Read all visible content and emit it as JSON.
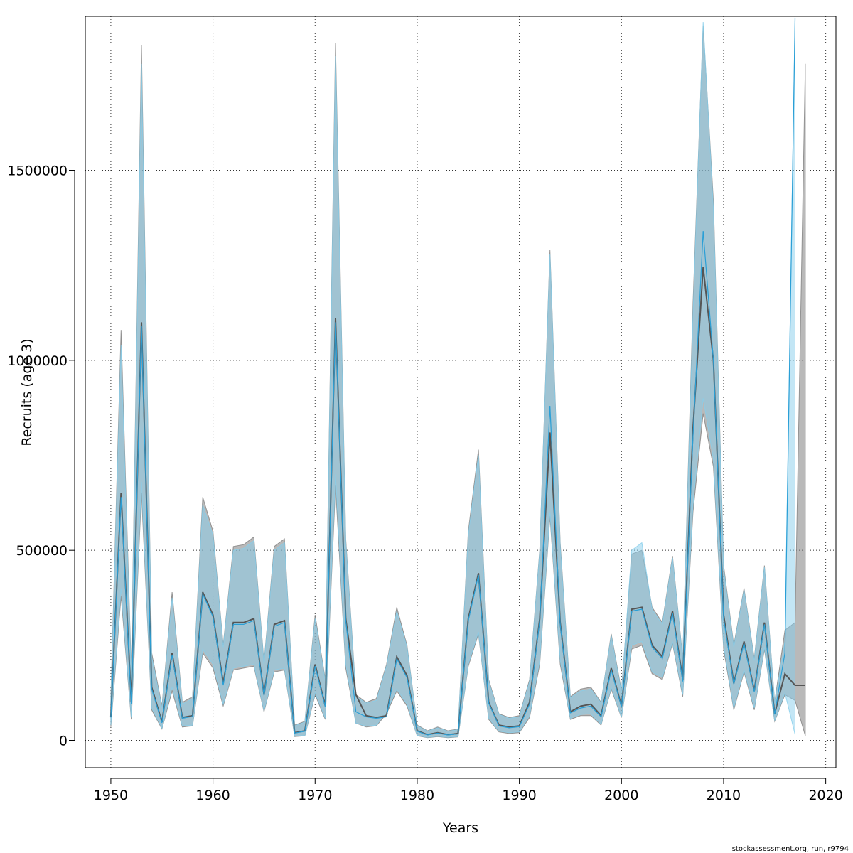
{
  "chart_data": {
    "type": "area",
    "xlabel": "Years",
    "ylabel": "Recruits (age 3)",
    "footer": "stockassessment.org, run, r9794",
    "xlim": [
      1947.5,
      2021
    ],
    "ylim": [
      -72000,
      1905000
    ],
    "x_ticks": [
      1950,
      1960,
      1970,
      1980,
      1990,
      2000,
      2010,
      2020
    ],
    "y_ticks": [
      0,
      500000,
      1000000,
      1500000
    ],
    "y_tick_labels": [
      "0",
      "500000",
      "1000000",
      "1500000"
    ],
    "grid": true,
    "colors": {
      "gray_band": "#7f7f7f",
      "gray_line": "#555555",
      "blue_band": "#87ceeb",
      "blue_line": "#2a9fd6",
      "grid": "#333333"
    },
    "series": [
      {
        "kind": "gray",
        "x": [
          1950,
          1951,
          1952,
          1953,
          1954,
          1955,
          1956,
          1957,
          1958,
          1959,
          1960,
          1961,
          1962,
          1963,
          1964,
          1965,
          1966,
          1967,
          1968,
          1969,
          1970,
          1971,
          1972,
          1973,
          1974,
          1975,
          1976,
          1977,
          1978,
          1979,
          1980,
          1981,
          1982,
          1983,
          1984,
          1985,
          1986,
          1987,
          1988,
          1989,
          1990,
          1991,
          1992,
          1993,
          1994,
          1995,
          1996,
          1997,
          1998,
          1999,
          2000,
          2001,
          2002,
          2003,
          2004,
          2005,
          2006,
          2007,
          2008,
          2009,
          2010,
          2011,
          2012,
          2013,
          2014,
          2015,
          2016,
          2017,
          2018
        ],
        "estimate": [
          62000,
          650000,
          100000,
          1100000,
          140000,
          48000,
          230000,
          60000,
          65000,
          390000,
          330000,
          150000,
          310000,
          310000,
          320000,
          120000,
          305000,
          315000,
          20000,
          25000,
          200000,
          90000,
          1110000,
          320000,
          120000,
          65000,
          60000,
          65000,
          220000,
          170000,
          25000,
          15000,
          20000,
          15000,
          18000,
          320000,
          440000,
          100000,
          40000,
          35000,
          38000,
          100000,
          320000,
          810000,
          310000,
          75000,
          90000,
          95000,
          65000,
          190000,
          90000,
          345000,
          350000,
          250000,
          220000,
          340000,
          160000,
          820000,
          1245000,
          1000000,
          330000,
          150000,
          260000,
          130000,
          310000,
          70000,
          175000,
          145000,
          145000
        ],
        "lower": [
          35000,
          380000,
          55000,
          650000,
          80000,
          30000,
          130000,
          35000,
          38000,
          230000,
          190000,
          90000,
          185000,
          190000,
          195000,
          75000,
          180000,
          185000,
          10000,
          12000,
          120000,
          55000,
          670000,
          190000,
          45000,
          35000,
          38000,
          70000,
          130000,
          90000,
          12000,
          7000,
          10000,
          7000,
          9000,
          195000,
          280000,
          55000,
          22000,
          18000,
          20000,
          60000,
          200000,
          590000,
          200000,
          55000,
          65000,
          65000,
          40000,
          135000,
          60000,
          240000,
          250000,
          175000,
          160000,
          255000,
          115000,
          600000,
          860000,
          720000,
          240000,
          80000,
          180000,
          80000,
          240000,
          50000,
          120000,
          105000,
          12000
        ],
        "upper": [
          110000,
          1080000,
          180000,
          1830000,
          230000,
          90000,
          390000,
          100000,
          115000,
          640000,
          550000,
          250000,
          510000,
          515000,
          535000,
          205000,
          510000,
          530000,
          40000,
          50000,
          330000,
          160000,
          1835000,
          530000,
          120000,
          100000,
          110000,
          200000,
          350000,
          250000,
          40000,
          25000,
          35000,
          25000,
          30000,
          550000,
          765000,
          160000,
          70000,
          60000,
          65000,
          160000,
          500000,
          1290000,
          520000,
          115000,
          135000,
          140000,
          100000,
          280000,
          130000,
          490000,
          500000,
          350000,
          310000,
          485000,
          215000,
          1150000,
          1880000,
          1420000,
          460000,
          250000,
          400000,
          215000,
          460000,
          100000,
          290000,
          310000,
          1780000
        ]
      },
      {
        "kind": "blue",
        "x": [
          1950,
          1951,
          1952,
          1953,
          1954,
          1955,
          1956,
          1957,
          1958,
          1959,
          1960,
          1961,
          1962,
          1963,
          1964,
          1965,
          1966,
          1967,
          1968,
          1969,
          1970,
          1971,
          1972,
          1973,
          1974,
          1975,
          1976,
          1977,
          1978,
          1979,
          1980,
          1981,
          1982,
          1983,
          1984,
          1985,
          1986,
          1987,
          1988,
          1989,
          1990,
          1991,
          1992,
          1993,
          1994,
          1995,
          1996,
          1997,
          1998,
          1999,
          2000,
          2001,
          2002,
          2003,
          2004,
          2005,
          2006,
          2007,
          2008,
          2009,
          2010,
          2011,
          2012,
          2013,
          2014,
          2015,
          2016,
          2017
        ],
        "estimate": [
          60000,
          640000,
          95000,
          1090000,
          135000,
          46000,
          225000,
          58000,
          63000,
          385000,
          325000,
          145000,
          305000,
          305000,
          315000,
          118000,
          300000,
          310000,
          19000,
          24000,
          195000,
          88000,
          1100000,
          315000,
          75000,
          62000,
          58000,
          62000,
          215000,
          165000,
          24000,
          14000,
          19000,
          14000,
          17000,
          315000,
          435000,
          98000,
          38000,
          33000,
          36000,
          95000,
          315000,
          880000,
          305000,
          72000,
          85000,
          90000,
          62000,
          185000,
          88000,
          340000,
          345000,
          245000,
          215000,
          335000,
          155000,
          800000,
          1340000,
          1000000,
          320000,
          148000,
          255000,
          128000,
          305000,
          68000,
          230000,
          1900000
        ],
        "lower": [
          40000,
          400000,
          60000,
          680000,
          85000,
          32000,
          140000,
          38000,
          40000,
          240000,
          200000,
          95000,
          190000,
          195000,
          200000,
          78000,
          185000,
          190000,
          11000,
          13000,
          125000,
          58000,
          700000,
          200000,
          45000,
          37000,
          40000,
          75000,
          135000,
          95000,
          13000,
          8000,
          11000,
          8000,
          10000,
          200000,
          285000,
          58000,
          24000,
          20000,
          22000,
          65000,
          210000,
          600000,
          210000,
          58000,
          68000,
          70000,
          42000,
          140000,
          62000,
          250000,
          260000,
          180000,
          165000,
          260000,
          120000,
          620000,
          900000,
          740000,
          250000,
          85000,
          185000,
          85000,
          245000,
          52000,
          125000,
          15000
        ],
        "upper": [
          100000,
          1040000,
          160000,
          1780000,
          220000,
          85000,
          375000,
          95000,
          110000,
          620000,
          540000,
          245000,
          500000,
          505000,
          525000,
          200000,
          500000,
          520000,
          38000,
          48000,
          320000,
          155000,
          1800000,
          520000,
          115000,
          98000,
          105000,
          195000,
          340000,
          245000,
          38000,
          24000,
          33000,
          24000,
          28000,
          540000,
          750000,
          155000,
          68000,
          58000,
          62000,
          155000,
          495000,
          1280000,
          510000,
          112000,
          130000,
          135000,
          98000,
          275000,
          125000,
          500000,
          520000,
          345000,
          305000,
          480000,
          210000,
          1120000,
          1890000,
          1400000,
          450000,
          245000,
          395000,
          210000,
          455000,
          98000,
          260000,
          1905000
        ]
      }
    ]
  }
}
